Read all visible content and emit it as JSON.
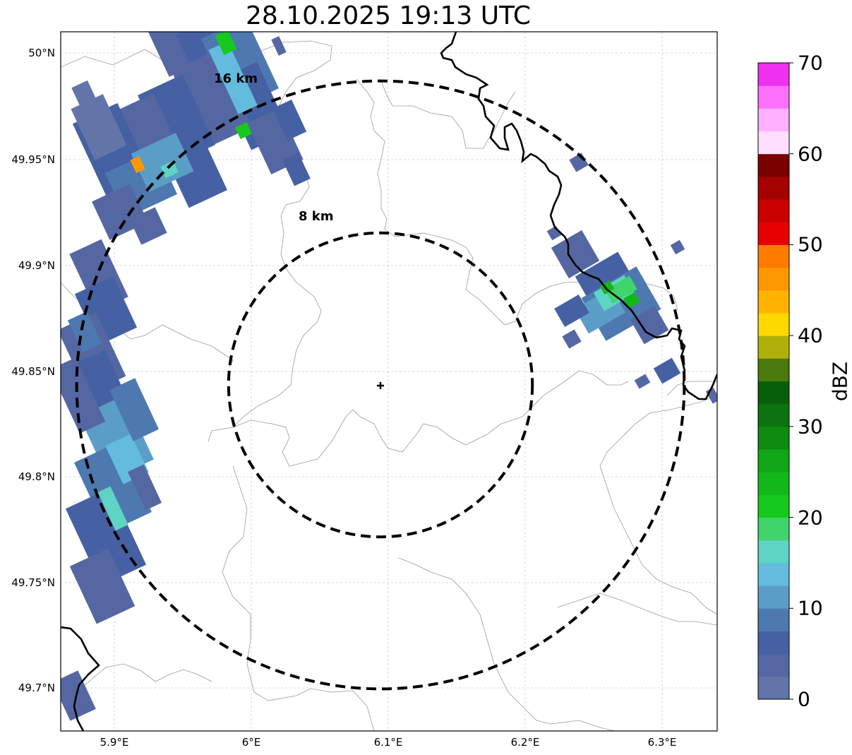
{
  "title": "28.10.2025 19:13 UTC",
  "map": {
    "lon_ticks": [
      "5.9°E",
      "6°E",
      "6.1°E",
      "6.2°E",
      "6.3°E"
    ],
    "lat_ticks": [
      "50°N",
      "49.95°N",
      "49.9°N",
      "49.85°N",
      "49.8°N",
      "49.75°N",
      "49.7°N"
    ],
    "range_rings": [
      {
        "label": "8 km",
        "radius_km": 8
      },
      {
        "label": "16 km",
        "radius_km": 16
      }
    ],
    "radar_site_marker": "plus-icon"
  },
  "colorbar": {
    "label": "dBZ",
    "ticks": [
      "0",
      "10",
      "20",
      "30",
      "40",
      "50",
      "60",
      "70"
    ],
    "colors": [
      "#6374a8",
      "#5567a2",
      "#4561a3",
      "#4d79b0",
      "#5a9ec8",
      "#63bcdd",
      "#5fd3c4",
      "#3fd46c",
      "#16c91c",
      "#12b81a",
      "#10a615",
      "#0d8c10",
      "#0b7310",
      "#075f0c",
      "#4a7a0c",
      "#b0b00a",
      "#ffd800",
      "#ffb300",
      "#ff9700",
      "#ff7b00",
      "#e60000",
      "#c80000",
      "#a50000",
      "#7a0000",
      "#ffddff",
      "#ffb0ff",
      "#ff70ff",
      "#f030f0"
    ]
  },
  "colors": {
    "ring": "#000000",
    "border": "#000000",
    "admin": "#9a9a9a",
    "grid": "#b0b0b0"
  }
}
